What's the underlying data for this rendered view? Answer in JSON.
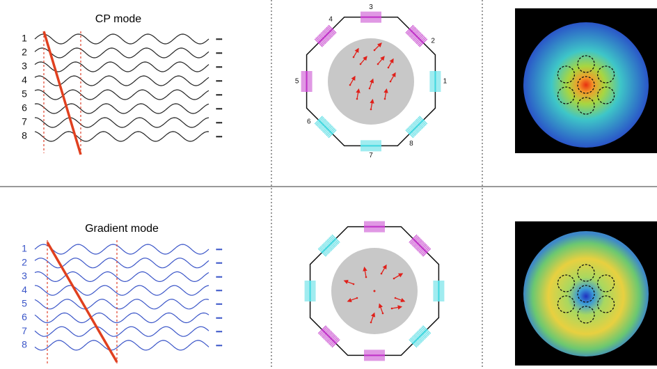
{
  "rows": [
    {
      "title": "CP mode",
      "channels": [
        "1",
        "2",
        "3",
        "4",
        "5",
        "6",
        "7",
        "8"
      ],
      "ellipsis": "••••",
      "coil_labels": [
        "1",
        "2",
        "3",
        "4",
        "5",
        "6",
        "7",
        "8"
      ]
    },
    {
      "title": "Gradient mode",
      "channels": [
        "1",
        "2",
        "3",
        "4",
        "5",
        "6",
        "7",
        "8"
      ],
      "ellipsis": "••••"
    }
  ]
}
